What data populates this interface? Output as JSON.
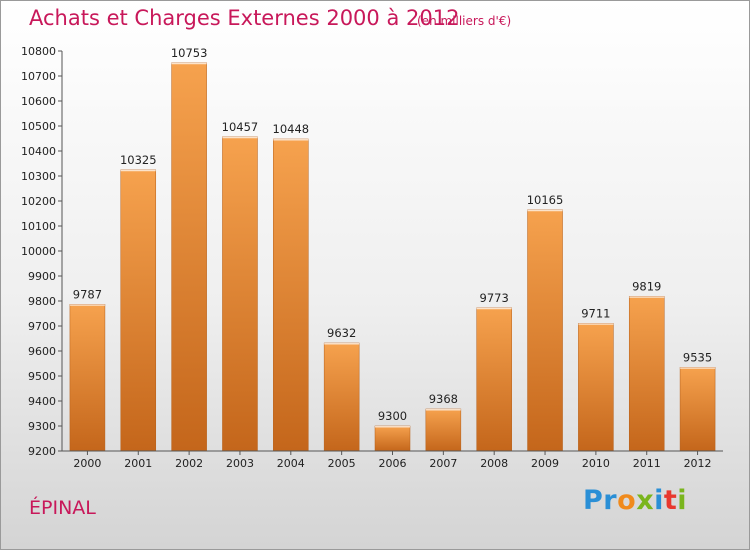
{
  "header": {
    "title": "Achats et Charges Externes 2000 à 2012",
    "subtitle": "(en milliers d'€)"
  },
  "footer": {
    "city": "ÉPINAL",
    "logo_letters": [
      {
        "char": "P",
        "color": "#2a8fd6"
      },
      {
        "char": "r",
        "color": "#2a8fd6"
      },
      {
        "char": "o",
        "color": "#f08a1c"
      },
      {
        "char": "x",
        "color": "#7ab51d"
      },
      {
        "char": "i",
        "color": "#2a8fd6"
      },
      {
        "char": "t",
        "color": "#e8382e"
      },
      {
        "char": "i",
        "color": "#7ab51d"
      }
    ]
  },
  "chart_data": {
    "type": "bar",
    "categories": [
      "2000",
      "2001",
      "2002",
      "2003",
      "2004",
      "2005",
      "2006",
      "2007",
      "2008",
      "2009",
      "2010",
      "2011",
      "2012"
    ],
    "values": [
      9787,
      10325,
      10753,
      10457,
      10448,
      9632,
      9300,
      9368,
      9773,
      10165,
      9711,
      9819,
      9535
    ],
    "ylim": [
      9200,
      10800
    ],
    "yticks": [
      9200,
      9300,
      9400,
      9500,
      9600,
      9700,
      9800,
      9900,
      10000,
      10100,
      10200,
      10300,
      10400,
      10500,
      10600,
      10700,
      10800
    ],
    "grid": false,
    "bar_color_top": "#f6a24e",
    "bar_color_bottom": "#c4661b"
  }
}
